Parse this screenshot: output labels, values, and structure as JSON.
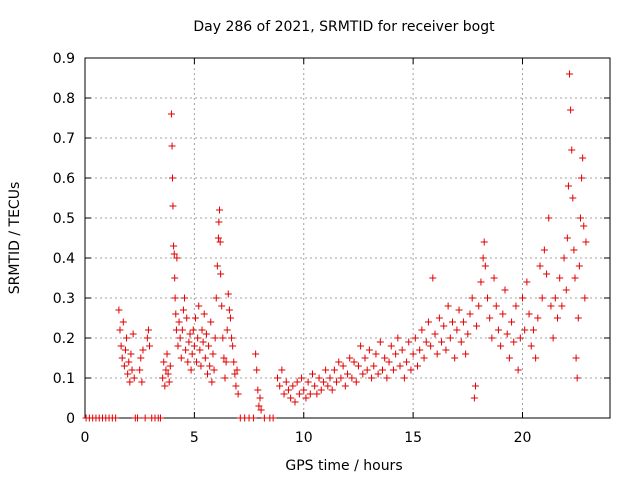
{
  "chart_data": {
    "type": "scatter",
    "title": "Day 286 of 2021, SRMTID for receiver bogt",
    "xlabel": "GPS time / hours",
    "ylabel": "SRMTID / TECUs",
    "xlim": [
      0,
      24
    ],
    "ylim": [
      0,
      0.9
    ],
    "xticks": [
      0,
      5,
      10,
      15,
      20
    ],
    "xtick_labels": [
      "0",
      "5",
      "10",
      "15",
      "20"
    ],
    "yticks": [
      0,
      0.1,
      0.2,
      0.3,
      0.4,
      0.5,
      0.6,
      0.7,
      0.8,
      0.9
    ],
    "ytick_labels": [
      "0",
      "0.1",
      "0.2",
      "0.3",
      "0.4",
      "0.5",
      "0.6",
      "0.7",
      "0.8",
      "0.9"
    ],
    "grid": true,
    "marker": "plus",
    "color": "#e00000",
    "series": [
      {
        "name": "SRMTID",
        "points": [
          [
            0.05,
            0
          ],
          [
            0.2,
            0
          ],
          [
            0.35,
            0
          ],
          [
            0.5,
            0
          ],
          [
            0.65,
            0
          ],
          [
            0.8,
            0
          ],
          [
            0.95,
            0
          ],
          [
            1.1,
            0
          ],
          [
            1.25,
            0
          ],
          [
            1.4,
            0
          ],
          [
            1.55,
            0.27
          ],
          [
            1.6,
            0.22
          ],
          [
            1.65,
            0.18
          ],
          [
            1.7,
            0.15
          ],
          [
            1.75,
            0.24
          ],
          [
            1.8,
            0.13
          ],
          [
            1.85,
            0.17
          ],
          [
            1.9,
            0.2
          ],
          [
            1.95,
            0.11
          ],
          [
            2.0,
            0.14
          ],
          [
            2.05,
            0.09
          ],
          [
            2.1,
            0.16
          ],
          [
            2.15,
            0.12
          ],
          [
            2.2,
            0.21
          ],
          [
            2.25,
            0.1
          ],
          [
            2.3,
            0
          ],
          [
            2.4,
            0
          ],
          [
            2.5,
            0.12
          ],
          [
            2.55,
            0.15
          ],
          [
            2.6,
            0.09
          ],
          [
            2.65,
            0.17
          ],
          [
            2.75,
            0
          ],
          [
            2.85,
            0.2
          ],
          [
            2.9,
            0.22
          ],
          [
            2.95,
            0.18
          ],
          [
            3.05,
            0
          ],
          [
            3.2,
            0
          ],
          [
            3.35,
            0
          ],
          [
            3.45,
            0
          ],
          [
            3.55,
            0.1
          ],
          [
            3.6,
            0.14
          ],
          [
            3.65,
            0.08
          ],
          [
            3.7,
            0.12
          ],
          [
            3.75,
            0.16
          ],
          [
            3.8,
            0.11
          ],
          [
            3.85,
            0.09
          ],
          [
            3.9,
            0.13
          ],
          [
            3.95,
            0.76
          ],
          [
            3.98,
            0.68
          ],
          [
            4.0,
            0.6
          ],
          [
            4.02,
            0.53
          ],
          [
            4.05,
            0.43
          ],
          [
            4.08,
            0.41
          ],
          [
            4.1,
            0.35
          ],
          [
            4.12,
            0.3
          ],
          [
            4.15,
            0.26
          ],
          [
            4.18,
            0.22
          ],
          [
            4.2,
            0.4
          ],
          [
            4.25,
            0.18
          ],
          [
            4.3,
            0.24
          ],
          [
            4.35,
            0.2
          ],
          [
            4.4,
            0.15
          ],
          [
            4.45,
            0.22
          ],
          [
            4.5,
            0.27
          ],
          [
            4.55,
            0.3
          ],
          [
            4.6,
            0.17
          ],
          [
            4.65,
            0.25
          ],
          [
            4.7,
            0.14
          ],
          [
            4.75,
            0.19
          ],
          [
            4.8,
            0.21
          ],
          [
            4.85,
            0.12
          ],
          [
            4.9,
            0.16
          ],
          [
            4.95,
            0.22
          ],
          [
            5.0,
            0.18
          ],
          [
            5.05,
            0.25
          ],
          [
            5.1,
            0.14
          ],
          [
            5.15,
            0.2
          ],
          [
            5.2,
            0.28
          ],
          [
            5.25,
            0.17
          ],
          [
            5.3,
            0.13
          ],
          [
            5.35,
            0.22
          ],
          [
            5.4,
            0.19
          ],
          [
            5.45,
            0.26
          ],
          [
            5.5,
            0.15
          ],
          [
            5.55,
            0.21
          ],
          [
            5.6,
            0.11
          ],
          [
            5.65,
            0.18
          ],
          [
            5.7,
            0.13
          ],
          [
            5.75,
            0.24
          ],
          [
            5.8,
            0.09
          ],
          [
            5.85,
            0.16
          ],
          [
            5.9,
            0.12
          ],
          [
            5.95,
            0.2
          ],
          [
            6.0,
            0.3
          ],
          [
            6.05,
            0.38
          ],
          [
            6.1,
            0.45
          ],
          [
            6.12,
            0.49
          ],
          [
            6.15,
            0.52
          ],
          [
            6.18,
            0.44
          ],
          [
            6.2,
            0.36
          ],
          [
            6.25,
            0.28
          ],
          [
            6.3,
            0.2
          ],
          [
            6.35,
            0.15
          ],
          [
            6.4,
            0.1
          ],
          [
            6.45,
            0.14
          ],
          [
            6.5,
            0.22
          ],
          [
            6.55,
            0.31
          ],
          [
            6.6,
            0.27
          ],
          [
            6.65,
            0.25
          ],
          [
            6.7,
            0.2
          ],
          [
            6.75,
            0.18
          ],
          [
            6.8,
            0.14
          ],
          [
            6.85,
            0.11
          ],
          [
            6.9,
            0.08
          ],
          [
            6.95,
            0.12
          ],
          [
            7.0,
            0.06
          ],
          [
            7.1,
            0
          ],
          [
            7.3,
            0
          ],
          [
            7.5,
            0
          ],
          [
            7.7,
            0
          ],
          [
            7.8,
            0.16
          ],
          [
            7.85,
            0.12
          ],
          [
            7.9,
            0.07
          ],
          [
            7.95,
            0.03
          ],
          [
            8.0,
            0.05
          ],
          [
            8.05,
            0.02
          ],
          [
            8.2,
            0
          ],
          [
            8.45,
            0
          ],
          [
            8.6,
            0
          ],
          [
            8.8,
            0.1
          ],
          [
            8.9,
            0.08
          ],
          [
            9.0,
            0.12
          ],
          [
            9.1,
            0.06
          ],
          [
            9.2,
            0.09
          ],
          [
            9.3,
            0.07
          ],
          [
            9.4,
            0.05
          ],
          [
            9.5,
            0.08
          ],
          [
            9.6,
            0.04
          ],
          [
            9.7,
            0.09
          ],
          [
            9.8,
            0.06
          ],
          [
            9.9,
            0.1
          ],
          [
            10.0,
            0.07
          ],
          [
            10.1,
            0.05
          ],
          [
            10.2,
            0.09
          ],
          [
            10.3,
            0.06
          ],
          [
            10.4,
            0.11
          ],
          [
            10.5,
            0.08
          ],
          [
            10.6,
            0.06
          ],
          [
            10.7,
            0.1
          ],
          [
            10.8,
            0.07
          ],
          [
            10.9,
            0.09
          ],
          [
            11.0,
            0.12
          ],
          [
            11.1,
            0.08
          ],
          [
            11.2,
            0.1
          ],
          [
            11.3,
            0.07
          ],
          [
            11.4,
            0.12
          ],
          [
            11.5,
            0.09
          ],
          [
            11.6,
            0.14
          ],
          [
            11.7,
            0.1
          ],
          [
            11.8,
            0.13
          ],
          [
            11.9,
            0.08
          ],
          [
            12.0,
            0.11
          ],
          [
            12.1,
            0.15
          ],
          [
            12.2,
            0.1
          ],
          [
            12.3,
            0.14
          ],
          [
            12.4,
            0.09
          ],
          [
            12.5,
            0.13
          ],
          [
            12.6,
            0.18
          ],
          [
            12.7,
            0.11
          ],
          [
            12.8,
            0.15
          ],
          [
            12.9,
            0.12
          ],
          [
            13.0,
            0.17
          ],
          [
            13.1,
            0.1
          ],
          [
            13.2,
            0.13
          ],
          [
            13.3,
            0.16
          ],
          [
            13.4,
            0.11
          ],
          [
            13.5,
            0.19
          ],
          [
            13.6,
            0.12
          ],
          [
            13.7,
            0.15
          ],
          [
            13.8,
            0.1
          ],
          [
            13.9,
            0.14
          ],
          [
            14.0,
            0.18
          ],
          [
            14.1,
            0.12
          ],
          [
            14.2,
            0.16
          ],
          [
            14.3,
            0.2
          ],
          [
            14.4,
            0.13
          ],
          [
            14.5,
            0.17
          ],
          [
            14.6,
            0.1
          ],
          [
            14.7,
            0.14
          ],
          [
            14.8,
            0.19
          ],
          [
            14.9,
            0.12
          ],
          [
            15.0,
            0.16
          ],
          [
            15.1,
            0.2
          ],
          [
            15.2,
            0.13
          ],
          [
            15.3,
            0.17
          ],
          [
            15.4,
            0.22
          ],
          [
            15.5,
            0.15
          ],
          [
            15.6,
            0.19
          ],
          [
            15.7,
            0.24
          ],
          [
            15.8,
            0.18
          ],
          [
            15.9,
            0.35
          ],
          [
            16.0,
            0.21
          ],
          [
            16.1,
            0.16
          ],
          [
            16.2,
            0.25
          ],
          [
            16.3,
            0.19
          ],
          [
            16.4,
            0.23
          ],
          [
            16.5,
            0.17
          ],
          [
            16.6,
            0.28
          ],
          [
            16.7,
            0.2
          ],
          [
            16.8,
            0.24
          ],
          [
            16.9,
            0.15
          ],
          [
            17.0,
            0.22
          ],
          [
            17.1,
            0.27
          ],
          [
            17.2,
            0.19
          ],
          [
            17.3,
            0.24
          ],
          [
            17.4,
            0.16
          ],
          [
            17.5,
            0.21
          ],
          [
            17.6,
            0.26
          ],
          [
            17.7,
            0.3
          ],
          [
            17.8,
            0.05
          ],
          [
            17.85,
            0.08
          ],
          [
            17.9,
            0.23
          ],
          [
            18.0,
            0.28
          ],
          [
            18.1,
            0.34
          ],
          [
            18.2,
            0.4
          ],
          [
            18.25,
            0.44
          ],
          [
            18.3,
            0.38
          ],
          [
            18.4,
            0.3
          ],
          [
            18.5,
            0.25
          ],
          [
            18.6,
            0.2
          ],
          [
            18.7,
            0.35
          ],
          [
            18.8,
            0.28
          ],
          [
            18.9,
            0.22
          ],
          [
            19.0,
            0.18
          ],
          [
            19.1,
            0.26
          ],
          [
            19.2,
            0.32
          ],
          [
            19.3,
            0.21
          ],
          [
            19.4,
            0.15
          ],
          [
            19.5,
            0.24
          ],
          [
            19.6,
            0.19
          ],
          [
            19.7,
            0.28
          ],
          [
            19.8,
            0.12
          ],
          [
            19.9,
            0.2
          ],
          [
            20.0,
            0.3
          ],
          [
            20.1,
            0.22
          ],
          [
            20.2,
            0.34
          ],
          [
            20.3,
            0.26
          ],
          [
            20.4,
            0.18
          ],
          [
            20.5,
            0.22
          ],
          [
            20.6,
            0.15
          ],
          [
            20.7,
            0.25
          ],
          [
            20.8,
            0.38
          ],
          [
            20.9,
            0.3
          ],
          [
            21.0,
            0.42
          ],
          [
            21.1,
            0.36
          ],
          [
            21.2,
            0.5
          ],
          [
            21.3,
            0.28
          ],
          [
            21.4,
            0.2
          ],
          [
            21.5,
            0.3
          ],
          [
            21.6,
            0.25
          ],
          [
            21.7,
            0.35
          ],
          [
            21.8,
            0.28
          ],
          [
            21.9,
            0.4
          ],
          [
            22.0,
            0.32
          ],
          [
            22.05,
            0.45
          ],
          [
            22.1,
            0.58
          ],
          [
            22.15,
            0.86
          ],
          [
            22.2,
            0.77
          ],
          [
            22.25,
            0.67
          ],
          [
            22.3,
            0.55
          ],
          [
            22.35,
            0.42
          ],
          [
            22.4,
            0.35
          ],
          [
            22.45,
            0.15
          ],
          [
            22.5,
            0.1
          ],
          [
            22.55,
            0.25
          ],
          [
            22.6,
            0.38
          ],
          [
            22.65,
            0.5
          ],
          [
            22.7,
            0.6
          ],
          [
            22.75,
            0.65
          ],
          [
            22.8,
            0.48
          ],
          [
            22.85,
            0.3
          ],
          [
            22.9,
            0.44
          ]
        ]
      }
    ]
  }
}
